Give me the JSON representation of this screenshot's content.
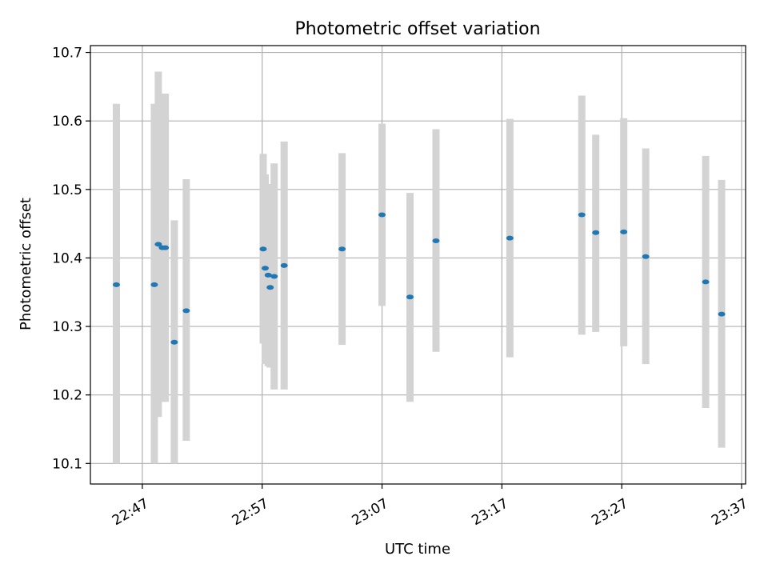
{
  "chart_data": {
    "type": "scatter",
    "title": "Photometric offset variation",
    "xlabel": "UTC time",
    "ylabel": "Photometric offset",
    "grid": true,
    "legend": "none",
    "xlim": [
      "22:42:40",
      "23:37:20"
    ],
    "ylim": [
      10.07,
      10.71
    ],
    "x_ticks": [
      "22:47",
      "22:57",
      "23:07",
      "23:17",
      "23:27",
      "23:37"
    ],
    "y_ticks": [
      "10.1",
      "10.2",
      "10.3",
      "10.4",
      "10.5",
      "10.6",
      "10.7"
    ],
    "colors": {
      "marker": "#1f77b4",
      "errorbar": "#d3d3d3",
      "grid": "#b0b0b0"
    },
    "series": [
      {
        "points": [
          {
            "x": "22:44:50",
            "y": 10.361,
            "ylow": 10.1,
            "yhigh": 10.625
          },
          {
            "x": "22:48:00",
            "y": 10.361,
            "ylow": 10.1,
            "yhigh": 10.625
          },
          {
            "x": "22:48:20",
            "y": 10.42,
            "ylow": 10.168,
            "yhigh": 10.672
          },
          {
            "x": "22:48:40",
            "y": 10.415,
            "ylow": 10.19,
            "yhigh": 10.64
          },
          {
            "x": "22:48:55",
            "y": 10.415,
            "ylow": 10.19,
            "yhigh": 10.64
          },
          {
            "x": "22:49:40",
            "y": 10.277,
            "ylow": 10.1,
            "yhigh": 10.455
          },
          {
            "x": "22:50:40",
            "y": 10.323,
            "ylow": 10.133,
            "yhigh": 10.515
          },
          {
            "x": "22:57:05",
            "y": 10.413,
            "ylow": 10.275,
            "yhigh": 10.552
          },
          {
            "x": "22:57:15",
            "y": 10.385,
            "ylow": 10.245,
            "yhigh": 10.522
          },
          {
            "x": "22:57:30",
            "y": 10.375,
            "ylow": 10.242,
            "yhigh": 10.508
          },
          {
            "x": "22:57:40",
            "y": 10.357,
            "ylow": 10.24,
            "yhigh": 10.5
          },
          {
            "x": "22:58:00",
            "y": 10.373,
            "ylow": 10.208,
            "yhigh": 10.538
          },
          {
            "x": "22:58:50",
            "y": 10.389,
            "ylow": 10.208,
            "yhigh": 10.57
          },
          {
            "x": "23:03:40",
            "y": 10.413,
            "ylow": 10.273,
            "yhigh": 10.553
          },
          {
            "x": "23:07:00",
            "y": 10.463,
            "ylow": 10.33,
            "yhigh": 10.596
          },
          {
            "x": "23:09:20",
            "y": 10.343,
            "ylow": 10.19,
            "yhigh": 10.495
          },
          {
            "x": "23:11:30",
            "y": 10.425,
            "ylow": 10.263,
            "yhigh": 10.588
          },
          {
            "x": "23:17:40",
            "y": 10.429,
            "ylow": 10.255,
            "yhigh": 10.603
          },
          {
            "x": "23:23:40",
            "y": 10.463,
            "ylow": 10.288,
            "yhigh": 10.637
          },
          {
            "x": "23:24:50",
            "y": 10.437,
            "ylow": 10.292,
            "yhigh": 10.58
          },
          {
            "x": "23:27:10",
            "y": 10.438,
            "ylow": 10.271,
            "yhigh": 10.604
          },
          {
            "x": "23:29:00",
            "y": 10.402,
            "ylow": 10.245,
            "yhigh": 10.56
          },
          {
            "x": "23:34:00",
            "y": 10.365,
            "ylow": 10.181,
            "yhigh": 10.549
          },
          {
            "x": "23:35:20",
            "y": 10.318,
            "ylow": 10.123,
            "yhigh": 10.514
          }
        ]
      }
    ]
  }
}
